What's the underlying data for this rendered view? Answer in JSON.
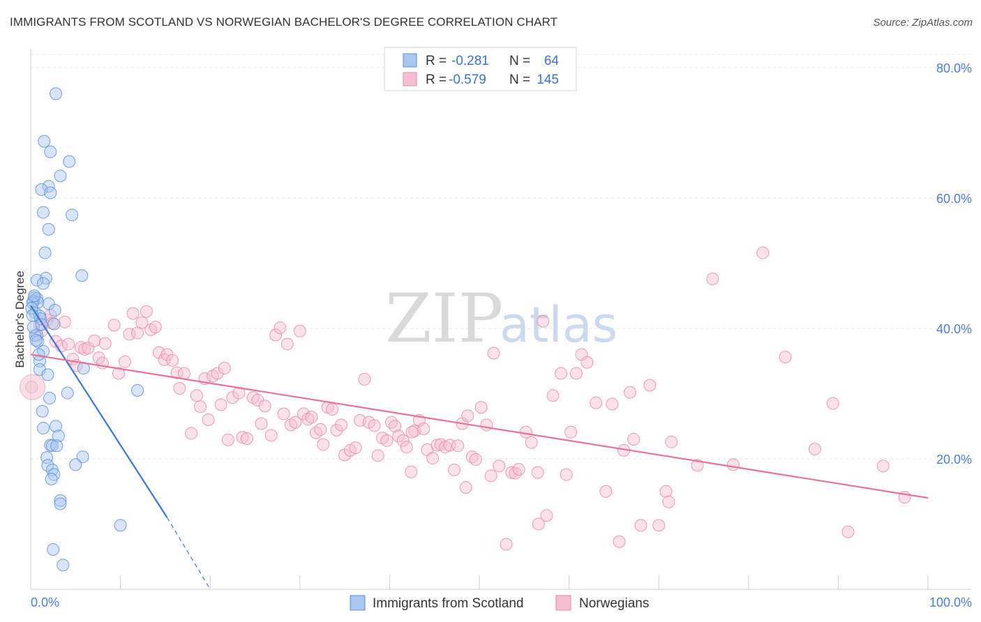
{
  "header": {
    "title": "IMMIGRANTS FROM SCOTLAND VS NORWEGIAN BACHELOR'S DEGREE CORRELATION CHART",
    "source": "Source: ZipAtlas.com"
  },
  "watermark": {
    "zip": "ZIP",
    "atlas": "atlas"
  },
  "colors": {
    "blue_fill": "#a9c6ef",
    "blue_stroke": "#5b8fd9",
    "blue_line": "#3a78d6",
    "pink_fill": "#f6bfd0",
    "pink_stroke": "#e889a8",
    "pink_line": "#e8719a",
    "grid": "#e2e2e2",
    "tick_text": "#4a7fd6"
  },
  "legend": {
    "rows": [
      {
        "r_label": "R =",
        "r_value": "-0.281",
        "n_label": "N =",
        "n_value": "64"
      },
      {
        "r_label": "R =",
        "r_value": "-0.579",
        "n_label": "N =",
        "n_value": "145"
      }
    ]
  },
  "chart_data": {
    "type": "scatter",
    "title": "IMMIGRANTS FROM SCOTLAND VS NORWEGIAN BACHELOR'S DEGREE CORRELATION CHART",
    "xlabel": "",
    "ylabel": "Bachelor's Degree",
    "xlim": [
      0,
      100
    ],
    "ylim": [
      0,
      80
    ],
    "x_tick_labels": [
      "0.0%",
      "100.0%"
    ],
    "y_ticks": [
      20,
      40,
      60,
      80
    ],
    "y_tick_labels": [
      "20.0%",
      "40.0%",
      "60.0%",
      "80.0%"
    ],
    "grid": true,
    "legend_position": "bottom",
    "series": [
      {
        "name": "Immigrants from Scotland",
        "color": "#a9c6ef",
        "R": -0.281,
        "N": 64,
        "trend": {
          "x0": 0,
          "y0": 43.5,
          "x1": 15.2,
          "y1": 11.0,
          "dashed_to_x": 20.0,
          "dashed_to_y": 0
        },
        "points": [
          [
            2.8,
            76.0
          ],
          [
            1.5,
            68.7
          ],
          [
            2.2,
            67.1
          ],
          [
            4.3,
            65.6
          ],
          [
            3.3,
            63.4
          ],
          [
            2.0,
            61.8
          ],
          [
            1.2,
            61.3
          ],
          [
            2.2,
            60.8
          ],
          [
            1.4,
            57.8
          ],
          [
            4.6,
            57.4
          ],
          [
            2.0,
            55.2
          ],
          [
            1.6,
            51.6
          ],
          [
            5.7,
            48.1
          ],
          [
            1.7,
            47.7
          ],
          [
            0.7,
            47.4
          ],
          [
            1.4,
            46.9
          ],
          [
            0.4,
            44.7
          ],
          [
            0.7,
            44.6
          ],
          [
            0.3,
            44.2
          ],
          [
            0.8,
            44.0
          ],
          [
            0.2,
            43.9
          ],
          [
            2.0,
            43.8
          ],
          [
            2.7,
            42.8
          ],
          [
            0.5,
            42.4
          ],
          [
            1.0,
            41.9
          ],
          [
            1.1,
            41.5
          ],
          [
            2.6,
            40.7
          ],
          [
            0.7,
            39.0
          ],
          [
            0.5,
            38.9
          ],
          [
            0.8,
            38.0
          ],
          [
            1.4,
            36.5
          ],
          [
            1.0,
            35.0
          ],
          [
            5.9,
            33.9
          ],
          [
            1.0,
            33.7
          ],
          [
            1.9,
            32.9
          ],
          [
            11.9,
            30.5
          ],
          [
            4.1,
            30.1
          ],
          [
            2.1,
            29.3
          ],
          [
            1.3,
            27.3
          ],
          [
            1.4,
            24.7
          ],
          [
            2.8,
            25.0
          ],
          [
            3.1,
            23.5
          ],
          [
            2.2,
            22.1
          ],
          [
            2.4,
            22.0
          ],
          [
            2.9,
            22.0
          ],
          [
            5.8,
            20.3
          ],
          [
            1.8,
            20.2
          ],
          [
            1.9,
            19.0
          ],
          [
            5.0,
            19.1
          ],
          [
            2.4,
            18.3
          ],
          [
            2.6,
            17.6
          ],
          [
            2.3,
            16.9
          ],
          [
            3.3,
            13.6
          ],
          [
            3.3,
            13.1
          ],
          [
            10.0,
            9.8
          ],
          [
            2.5,
            6.1
          ],
          [
            3.6,
            3.7
          ],
          [
            0.1,
            43.1
          ],
          [
            0.2,
            42.0
          ],
          [
            0.3,
            40.2
          ],
          [
            0.6,
            38.2
          ],
          [
            0.9,
            36.0
          ],
          [
            1.2,
            40.6
          ],
          [
            0.4,
            45.0
          ]
        ]
      },
      {
        "name": "Norwegians",
        "color": "#f6bfd0",
        "R": -0.579,
        "N": 145,
        "trend": {
          "x0": 0,
          "y0": 36.0,
          "x1": 100,
          "y1": 14.0
        },
        "points": [
          [
            0.1,
            31.0
          ],
          [
            1.0,
            40.5
          ],
          [
            1.2,
            39.6
          ],
          [
            1.8,
            41.3
          ],
          [
            2.2,
            42.0
          ],
          [
            2.4,
            40.8
          ],
          [
            2.8,
            38.0
          ],
          [
            3.4,
            37.3
          ],
          [
            3.8,
            41.0
          ],
          [
            4.2,
            37.6
          ],
          [
            4.7,
            35.3
          ],
          [
            5.1,
            34.3
          ],
          [
            5.6,
            37.1
          ],
          [
            6.0,
            36.8
          ],
          [
            6.4,
            37.0
          ],
          [
            7.1,
            38.1
          ],
          [
            7.6,
            35.5
          ],
          [
            8.0,
            34.7
          ],
          [
            8.3,
            37.7
          ],
          [
            9.3,
            40.5
          ],
          [
            9.8,
            33.1
          ],
          [
            10.5,
            34.9
          ],
          [
            11.0,
            39.1
          ],
          [
            11.4,
            42.3
          ],
          [
            11.9,
            39.3
          ],
          [
            12.4,
            40.9
          ],
          [
            12.9,
            42.6
          ],
          [
            13.4,
            39.8
          ],
          [
            13.9,
            40.2
          ],
          [
            14.3,
            36.3
          ],
          [
            14.9,
            35.2
          ],
          [
            15.2,
            36.0
          ],
          [
            15.8,
            35.1
          ],
          [
            16.3,
            33.2
          ],
          [
            16.6,
            30.8
          ],
          [
            17.1,
            33.1
          ],
          [
            17.9,
            23.9
          ],
          [
            18.5,
            29.7
          ],
          [
            18.9,
            28.0
          ],
          [
            19.4,
            32.3
          ],
          [
            19.8,
            26.0
          ],
          [
            20.3,
            32.7
          ],
          [
            20.8,
            33.1
          ],
          [
            21.2,
            28.3
          ],
          [
            21.6,
            33.9
          ],
          [
            22.0,
            22.9
          ],
          [
            22.5,
            29.4
          ],
          [
            23.2,
            30.1
          ],
          [
            23.6,
            23.3
          ],
          [
            24.1,
            23.1
          ],
          [
            24.8,
            29.4
          ],
          [
            25.3,
            29.0
          ],
          [
            25.7,
            25.4
          ],
          [
            26.1,
            28.1
          ],
          [
            26.8,
            23.6
          ],
          [
            27.3,
            39.0
          ],
          [
            27.8,
            40.1
          ],
          [
            28.2,
            26.9
          ],
          [
            28.6,
            37.6
          ],
          [
            29.0,
            25.2
          ],
          [
            29.5,
            25.6
          ],
          [
            30.0,
            39.6
          ],
          [
            30.4,
            26.9
          ],
          [
            30.9,
            26.1
          ],
          [
            31.3,
            26.4
          ],
          [
            31.8,
            24.0
          ],
          [
            32.3,
            24.5
          ],
          [
            32.6,
            22.2
          ],
          [
            33.1,
            27.9
          ],
          [
            33.6,
            27.6
          ],
          [
            34.1,
            24.4
          ],
          [
            34.6,
            25.2
          ],
          [
            35.0,
            20.6
          ],
          [
            35.6,
            21.3
          ],
          [
            36.2,
            21.7
          ],
          [
            36.7,
            25.9
          ],
          [
            37.2,
            32.2
          ],
          [
            37.7,
            25.6
          ],
          [
            38.3,
            25.1
          ],
          [
            38.7,
            20.5
          ],
          [
            39.2,
            23.2
          ],
          [
            39.7,
            22.8
          ],
          [
            40.2,
            25.6
          ],
          [
            40.6,
            25.0
          ],
          [
            41.0,
            23.5
          ],
          [
            41.5,
            22.8
          ],
          [
            41.9,
            21.8
          ],
          [
            42.4,
            18.0
          ],
          [
            42.8,
            24.3
          ],
          [
            43.3,
            25.9
          ],
          [
            43.8,
            24.6
          ],
          [
            44.2,
            21.4
          ],
          [
            44.8,
            20.1
          ],
          [
            45.3,
            22.1
          ],
          [
            45.7,
            22.2
          ],
          [
            46.2,
            21.8
          ],
          [
            46.7,
            22.1
          ],
          [
            47.2,
            18.3
          ],
          [
            47.6,
            22.0
          ],
          [
            48.1,
            25.4
          ],
          [
            48.7,
            26.6
          ],
          [
            49.2,
            20.3
          ],
          [
            49.6,
            19.9
          ],
          [
            50.2,
            27.9
          ],
          [
            50.8,
            25.2
          ],
          [
            51.3,
            17.4
          ],
          [
            51.6,
            36.2
          ],
          [
            52.2,
            18.9
          ],
          [
            53.0,
            6.9
          ],
          [
            53.6,
            17.9
          ],
          [
            54.0,
            17.8
          ],
          [
            54.4,
            18.4
          ],
          [
            55.2,
            24.1
          ],
          [
            55.8,
            22.5
          ],
          [
            56.6,
            10.0
          ],
          [
            57.1,
            41.1
          ],
          [
            57.5,
            11.3
          ],
          [
            58.2,
            29.7
          ],
          [
            59.1,
            33.1
          ],
          [
            59.7,
            17.6
          ],
          [
            60.2,
            24.1
          ],
          [
            60.8,
            33.1
          ],
          [
            61.4,
            36.0
          ],
          [
            62.0,
            34.8
          ],
          [
            63.0,
            28.6
          ],
          [
            64.1,
            15.0
          ],
          [
            64.8,
            28.4
          ],
          [
            65.6,
            7.3
          ],
          [
            66.1,
            21.3
          ],
          [
            67.2,
            23.0
          ],
          [
            68.0,
            9.8
          ],
          [
            69.0,
            31.3
          ],
          [
            70.0,
            9.8
          ],
          [
            70.8,
            15.0
          ],
          [
            71.1,
            13.4
          ],
          [
            71.4,
            22.6
          ],
          [
            74.3,
            19.0
          ],
          [
            76.0,
            47.6
          ],
          [
            78.3,
            19.1
          ],
          [
            81.6,
            51.6
          ],
          [
            84.1,
            35.6
          ],
          [
            87.4,
            21.5
          ],
          [
            89.4,
            28.5
          ],
          [
            91.1,
            8.8
          ],
          [
            95.0,
            18.9
          ],
          [
            97.4,
            14.1
          ],
          [
            56.5,
            17.9
          ],
          [
            66.8,
            30.2
          ],
          [
            42.5,
            24.1
          ],
          [
            48.5,
            15.6
          ]
        ]
      }
    ]
  }
}
